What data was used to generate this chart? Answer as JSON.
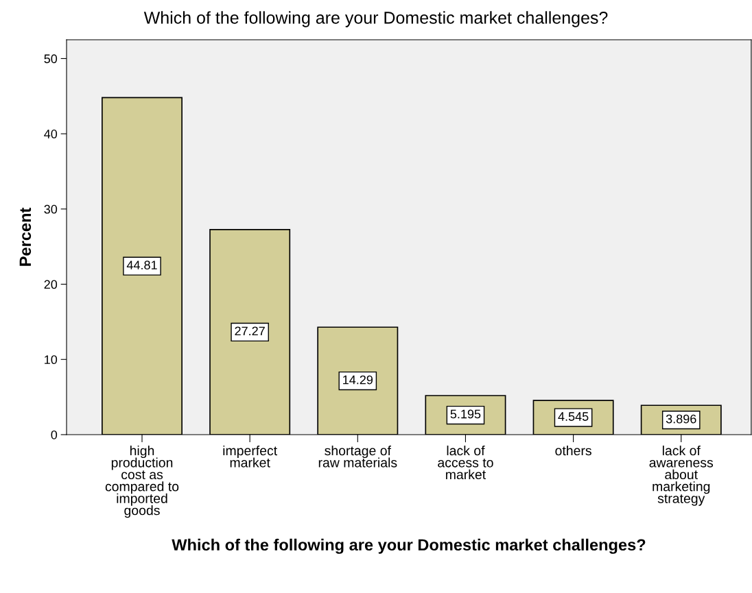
{
  "chart_data": {
    "type": "bar",
    "title": "Which of the following are your Domestic market challenges?",
    "xlabel": "Which of the following are your Domestic market challenges?",
    "ylabel": "Percent",
    "categories": [
      "high\nproduction\ncost as\ncompared to\nimported\ngoods",
      "imperfect\nmarket",
      "shortage of\nraw materials",
      "lack of\naccess to\nmarket",
      "others",
      "lack of\nawareness\nabout\nmarketing\nstrategy"
    ],
    "values": [
      44.81,
      27.27,
      14.29,
      5.195,
      4.545,
      3.896
    ],
    "value_labels": [
      "44.81",
      "27.27",
      "14.29",
      "5.195",
      "4.545",
      "3.896"
    ],
    "color": "#d3ce97",
    "ylim": [
      0,
      52.5
    ],
    "yticks": [
      0,
      10,
      20,
      30,
      40,
      50
    ],
    "grid": false,
    "legend": false
  }
}
